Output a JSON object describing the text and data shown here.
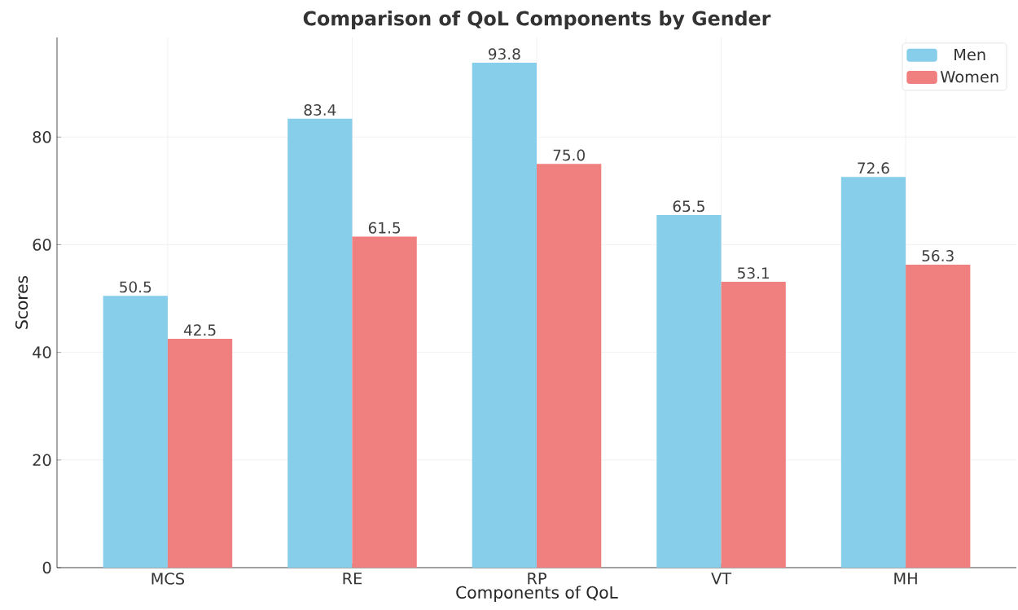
{
  "chart_data": {
    "type": "bar",
    "title": "Comparison of QoL Components by Gender",
    "xlabel": "Components of QoL",
    "ylabel": "Scores",
    "categories": [
      "MCS",
      "RE",
      "RP",
      "VT",
      "MH"
    ],
    "series": [
      {
        "name": "Men",
        "color": "#87ceeb",
        "values": [
          50.5,
          83.4,
          93.8,
          65.5,
          72.6
        ],
        "value_labels": [
          "50.5",
          "83.4",
          "93.8",
          "65.5",
          "72.6"
        ]
      },
      {
        "name": "Women",
        "color": "#f08080",
        "values": [
          42.5,
          61.5,
          75.0,
          53.1,
          56.3
        ],
        "value_labels": [
          "42.5",
          "61.5",
          "75.0",
          "53.1",
          "56.3"
        ]
      }
    ],
    "ylim": [
      0,
      98.5
    ],
    "yticks": [
      0,
      20,
      40,
      60,
      80
    ],
    "grid": true,
    "legend": "top right"
  }
}
